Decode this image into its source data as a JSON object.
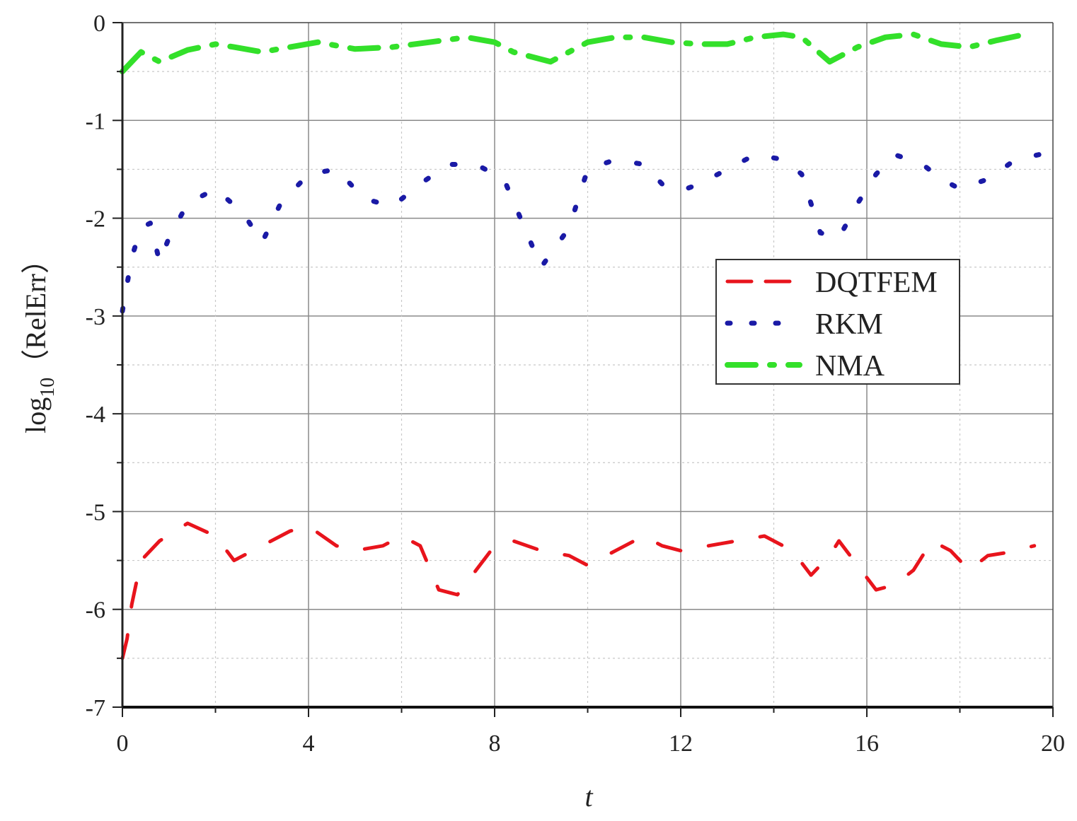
{
  "chart_data": {
    "type": "line",
    "xlabel": "t",
    "ylabel_main": "log",
    "ylabel_sub": "10",
    "ylabel_paren": "（RelErr）",
    "xlim": [
      0,
      20
    ],
    "ylim": [
      -7,
      0
    ],
    "xticks": [
      0,
      4,
      8,
      12,
      16,
      20
    ],
    "yticks": [
      0,
      -1,
      -2,
      -3,
      -4,
      -5,
      -6,
      -7
    ],
    "grid": true,
    "legend_position": "center-right",
    "series": [
      {
        "name": "DQTFEM",
        "color": "#e8141c",
        "style": "dashed",
        "x": [
          0,
          0.1,
          0.2,
          0.4,
          0.8,
          1.4,
          2.0,
          2.4,
          3.0,
          3.6,
          4.0,
          4.6,
          5.0,
          5.6,
          6.0,
          6.4,
          6.8,
          7.2,
          7.6,
          8.0,
          8.4,
          9.0,
          9.6,
          10.0,
          10.6,
          11.2,
          11.6,
          12.0,
          12.6,
          13.2,
          13.8,
          14.4,
          14.8,
          15.2,
          15.4,
          15.8,
          16.2,
          16.6,
          17.0,
          17.4,
          17.8,
          18.2,
          18.6,
          19.0,
          19.6
        ],
        "y": [
          -6.5,
          -6.3,
          -5.95,
          -5.5,
          -5.3,
          -5.12,
          -5.25,
          -5.5,
          -5.35,
          -5.2,
          -5.15,
          -5.35,
          -5.4,
          -5.35,
          -5.25,
          -5.35,
          -5.8,
          -5.85,
          -5.6,
          -5.35,
          -5.3,
          -5.4,
          -5.45,
          -5.55,
          -5.4,
          -5.25,
          -5.35,
          -5.4,
          -5.35,
          -5.3,
          -5.25,
          -5.4,
          -5.65,
          -5.45,
          -5.3,
          -5.55,
          -5.8,
          -5.75,
          -5.6,
          -5.3,
          -5.4,
          -5.6,
          -5.45,
          -5.42,
          -5.35
        ]
      },
      {
        "name": "RKM",
        "color": "#1a1aa6",
        "style": "dotted",
        "x": [
          0,
          0.2,
          0.4,
          0.6,
          0.8,
          1.0,
          1.4,
          2.0,
          2.6,
          3.0,
          3.4,
          4.0,
          4.6,
          5.2,
          5.8,
          6.4,
          7.0,
          7.6,
          8.2,
          8.6,
          9.0,
          9.6,
          10.0,
          10.6,
          11.2,
          11.6,
          12.0,
          12.4,
          13.0,
          13.6,
          14.2,
          14.6,
          15.0,
          15.4,
          15.8,
          16.2,
          16.6,
          17.2,
          17.6,
          18.0,
          18.6,
          19.2,
          20.0
        ],
        "y": [
          -2.95,
          -2.4,
          -2.1,
          -2.05,
          -2.45,
          -2.2,
          -1.85,
          -1.7,
          -1.95,
          -2.25,
          -1.85,
          -1.55,
          -1.5,
          -1.8,
          -1.88,
          -1.65,
          -1.45,
          -1.45,
          -1.6,
          -2.05,
          -2.5,
          -2.1,
          -1.5,
          -1.4,
          -1.45,
          -1.65,
          -1.72,
          -1.65,
          -1.5,
          -1.35,
          -1.4,
          -1.55,
          -2.15,
          -2.2,
          -1.85,
          -1.55,
          -1.35,
          -1.45,
          -1.6,
          -1.7,
          -1.6,
          -1.4,
          -1.32
        ]
      },
      {
        "name": "NMA",
        "color": "#33e02a",
        "style": "dash-dot",
        "x": [
          0,
          0.4,
          0.8,
          1.4,
          2.0,
          2.4,
          3.0,
          3.6,
          4.2,
          5.0,
          5.8,
          6.6,
          7.4,
          8.0,
          8.4,
          9.2,
          10.0,
          10.6,
          11.2,
          11.8,
          12.4,
          13.0,
          13.6,
          14.2,
          14.6,
          15.2,
          15.8,
          16.4,
          17.0,
          17.6,
          18.2,
          18.8,
          19.4
        ],
        "y": [
          -0.5,
          -0.3,
          -0.4,
          -0.28,
          -0.22,
          -0.25,
          -0.3,
          -0.25,
          -0.2,
          -0.27,
          -0.25,
          -0.2,
          -0.15,
          -0.2,
          -0.3,
          -0.4,
          -0.2,
          -0.15,
          -0.15,
          -0.2,
          -0.22,
          -0.22,
          -0.15,
          -0.12,
          -0.15,
          -0.4,
          -0.25,
          -0.15,
          -0.12,
          -0.22,
          -0.25,
          -0.18,
          -0.12
        ]
      }
    ]
  }
}
